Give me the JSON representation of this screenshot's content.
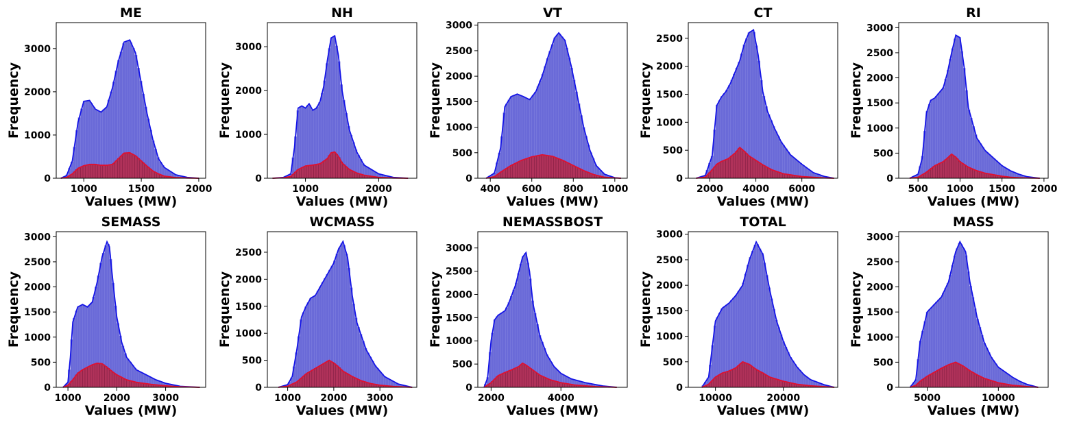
{
  "colors": {
    "total": "#3333cc",
    "total_fill": "#6a6ad8",
    "total_line": "#1414e6",
    "sub": "#c0143c",
    "sub_fill": "#b0325a",
    "sub_line": "#e01030"
  },
  "chart_data": [
    {
      "type": "histogram",
      "title": "ME",
      "xlabel": "Values (MW)",
      "ylabel": "Frequency",
      "xlim": [
        760,
        2060
      ],
      "ylim": [
        0,
        3600
      ],
      "xticks": [
        1000,
        1500,
        2000
      ],
      "yticks": [
        0,
        1000,
        2000,
        3000
      ],
      "series": [
        {
          "x": [
            800,
            850,
            900,
            950,
            1000,
            1050,
            1100,
            1150,
            1200,
            1250,
            1300,
            1350,
            1400,
            1450,
            1500,
            1550,
            1600,
            1650,
            1700,
            1800,
            1900,
            2000
          ],
          "y": [
            0,
            60,
            400,
            1300,
            1780,
            1800,
            1600,
            1530,
            1650,
            2100,
            2700,
            3150,
            3200,
            2900,
            2200,
            1500,
            900,
            450,
            250,
            80,
            20,
            0
          ]
        },
        {
          "x": [
            800,
            850,
            900,
            950,
            1000,
            1050,
            1100,
            1150,
            1200,
            1250,
            1300,
            1350,
            1400,
            1450,
            1500,
            1550,
            1600,
            1650,
            1700,
            1800,
            1900,
            2000
          ],
          "y": [
            0,
            20,
            100,
            230,
            290,
            320,
            320,
            300,
            300,
            320,
            450,
            580,
            590,
            520,
            400,
            280,
            170,
            100,
            50,
            15,
            5,
            0
          ]
        }
      ]
    },
    {
      "type": "histogram",
      "title": "NH",
      "xlabel": "Values (MW)",
      "ylabel": "Frequency",
      "xlim": [
        480,
        2520
      ],
      "ylim": [
        0,
        3550
      ],
      "xticks": [
        1000,
        2000
      ],
      "yticks": [
        0,
        1000,
        2000,
        3000
      ],
      "series": [
        {
          "x": [
            550,
            700,
            800,
            850,
            900,
            950,
            1000,
            1050,
            1100,
            1150,
            1200,
            1250,
            1300,
            1350,
            1400,
            1450,
            1500,
            1600,
            1700,
            1800,
            2000,
            2200,
            2400
          ],
          "y": [
            0,
            20,
            100,
            700,
            1600,
            1650,
            1600,
            1700,
            1550,
            1600,
            1750,
            2100,
            2700,
            3200,
            3250,
            2800,
            2000,
            1100,
            600,
            300,
            100,
            20,
            0
          ]
        },
        {
          "x": [
            550,
            700,
            800,
            900,
            1000,
            1100,
            1200,
            1300,
            1350,
            1400,
            1450,
            1500,
            1600,
            1700,
            1800,
            2000,
            2200,
            2400
          ],
          "y": [
            0,
            10,
            40,
            200,
            280,
            300,
            330,
            450,
            580,
            600,
            500,
            350,
            200,
            120,
            70,
            20,
            5,
            0
          ]
        }
      ]
    },
    {
      "type": "histogram",
      "title": "VT",
      "xlabel": "Values (MW)",
      "ylabel": "Frequency",
      "xlim": [
        340,
        1060
      ],
      "ylim": [
        0,
        3050
      ],
      "xticks": [
        400,
        600,
        800,
        1000
      ],
      "yticks": [
        0,
        500,
        1000,
        1500,
        2000,
        2500,
        3000
      ],
      "series": [
        {
          "x": [
            380,
            420,
            450,
            470,
            500,
            530,
            560,
            590,
            620,
            650,
            680,
            710,
            730,
            760,
            790,
            820,
            850,
            880,
            910,
            950,
            1000,
            1030
          ],
          "y": [
            0,
            100,
            600,
            1400,
            1600,
            1650,
            1600,
            1540,
            1700,
            2000,
            2400,
            2750,
            2850,
            2700,
            2200,
            1600,
            1000,
            550,
            250,
            80,
            10,
            0
          ]
        },
        {
          "x": [
            380,
            420,
            450,
            500,
            550,
            600,
            650,
            700,
            750,
            800,
            850,
            900,
            950,
            1000,
            1030
          ],
          "y": [
            0,
            30,
            120,
            250,
            350,
            420,
            460,
            430,
            350,
            250,
            150,
            70,
            20,
            5,
            0
          ]
        }
      ]
    },
    {
      "type": "histogram",
      "title": "CT",
      "xlabel": "Values (MW)",
      "ylabel": "Frequency",
      "xlim": [
        1060,
        7560
      ],
      "ylim": [
        0,
        2780
      ],
      "xticks": [
        2000,
        4000,
        6000
      ],
      "yticks": [
        0,
        500,
        1000,
        1500,
        2000,
        2500
      ],
      "series": [
        {
          "x": [
            1400,
            1800,
            2100,
            2300,
            2500,
            2700,
            2900,
            3100,
            3300,
            3500,
            3700,
            3900,
            4100,
            4300,
            4500,
            4800,
            5100,
            5500,
            6000,
            6500,
            7000,
            7400
          ],
          "y": [
            0,
            50,
            400,
            1300,
            1450,
            1550,
            1700,
            1900,
            2100,
            2400,
            2600,
            2650,
            2200,
            1550,
            1200,
            900,
            650,
            420,
            250,
            100,
            30,
            0
          ]
        },
        {
          "x": [
            1400,
            1800,
            2100,
            2300,
            2500,
            2800,
            3100,
            3300,
            3500,
            3700,
            4000,
            4300,
            4700,
            5200,
            6000,
            7000,
            7400
          ],
          "y": [
            0,
            20,
            150,
            250,
            300,
            350,
            450,
            550,
            480,
            400,
            320,
            240,
            150,
            80,
            30,
            5,
            0
          ]
        }
      ]
    },
    {
      "type": "histogram",
      "title": "RI",
      "xlabel": "Values (MW)",
      "ylabel": "Frequency",
      "xlim": [
        270,
        2050
      ],
      "ylim": [
        0,
        3100
      ],
      "xticks": [
        500,
        1000,
        1500,
        2000
      ],
      "yticks": [
        0,
        500,
        1000,
        1500,
        2000,
        2500,
        3000
      ],
      "series": [
        {
          "x": [
            400,
            500,
            550,
            600,
            650,
            700,
            750,
            800,
            850,
            900,
            950,
            1000,
            1050,
            1100,
            1200,
            1300,
            1400,
            1500,
            1600,
            1700,
            1800,
            1950
          ],
          "y": [
            0,
            80,
            400,
            1300,
            1550,
            1600,
            1700,
            1800,
            2100,
            2500,
            2850,
            2800,
            2200,
            1400,
            800,
            550,
            400,
            250,
            150,
            80,
            30,
            0
          ]
        },
        {
          "x": [
            400,
            500,
            600,
            700,
            800,
            850,
            900,
            950,
            1000,
            1100,
            1200,
            1300,
            1400,
            1500,
            1600,
            1700,
            1800,
            1950
          ],
          "y": [
            0,
            20,
            120,
            250,
            330,
            400,
            480,
            420,
            330,
            220,
            150,
            100,
            70,
            40,
            20,
            10,
            5,
            0
          ]
        }
      ]
    },
    {
      "type": "histogram",
      "title": "SEMASS",
      "xlabel": "Values (MW)",
      "ylabel": "Frequency",
      "xlim": [
        760,
        3820
      ],
      "ylim": [
        0,
        3100
      ],
      "xticks": [
        1000,
        2000,
        3000
      ],
      "yticks": [
        0,
        500,
        1000,
        1500,
        2000,
        2500,
        3000
      ],
      "series": [
        {
          "x": [
            900,
            1000,
            1050,
            1100,
            1200,
            1300,
            1400,
            1500,
            1600,
            1700,
            1800,
            1850,
            1900,
            2000,
            2100,
            2200,
            2400,
            2600,
            2800,
            3000,
            3300,
            3700
          ],
          "y": [
            0,
            100,
            600,
            1300,
            1600,
            1650,
            1600,
            1700,
            2100,
            2600,
            2900,
            2800,
            2300,
            1400,
            900,
            600,
            350,
            250,
            150,
            80,
            20,
            0
          ]
        },
        {
          "x": [
            900,
            1000,
            1100,
            1200,
            1300,
            1400,
            1500,
            1600,
            1700,
            1800,
            1900,
            2000,
            2200,
            2400,
            2700,
            3000,
            3300,
            3700
          ],
          "y": [
            0,
            40,
            150,
            280,
            350,
            400,
            450,
            480,
            470,
            400,
            320,
            250,
            150,
            100,
            60,
            30,
            10,
            0
          ]
        }
      ]
    },
    {
      "type": "histogram",
      "title": "WCMASS",
      "xlabel": "Values (MW)",
      "ylabel": "Frequency",
      "xlim": [
        560,
        3800
      ],
      "ylim": [
        0,
        2880
      ],
      "xticks": [
        1000,
        2000,
        3000
      ],
      "yticks": [
        0,
        500,
        1000,
        1500,
        2000,
        2500
      ],
      "series": [
        {
          "x": [
            800,
            1000,
            1100,
            1200,
            1300,
            1400,
            1500,
            1600,
            1700,
            1800,
            1900,
            2000,
            2100,
            2200,
            2300,
            2400,
            2500,
            2700,
            2900,
            3100,
            3400,
            3700
          ],
          "y": [
            0,
            50,
            200,
            700,
            1300,
            1500,
            1650,
            1700,
            1850,
            2000,
            2150,
            2300,
            2550,
            2700,
            2400,
            1700,
            1200,
            700,
            400,
            200,
            60,
            0
          ]
        },
        {
          "x": [
            800,
            1000,
            1200,
            1400,
            1600,
            1700,
            1800,
            1900,
            2000,
            2100,
            2200,
            2400,
            2600,
            2800,
            3000,
            3300,
            3700
          ],
          "y": [
            0,
            20,
            100,
            250,
            350,
            400,
            450,
            500,
            450,
            380,
            300,
            200,
            120,
            70,
            40,
            15,
            0
          ]
        }
      ]
    },
    {
      "type": "histogram",
      "title": "NEMASSBOST",
      "xlabel": "Values (MW)",
      "ylabel": "Frequency",
      "xlim": [
        1620,
        5900
      ],
      "ylim": [
        0,
        3350
      ],
      "xticks": [
        2000,
        4000
      ],
      "yticks": [
        0,
        500,
        1000,
        1500,
        2000,
        2500,
        3000
      ],
      "series": [
        {
          "x": [
            1800,
            1900,
            2000,
            2100,
            2200,
            2300,
            2400,
            2500,
            2600,
            2700,
            2800,
            2900,
            3000,
            3100,
            3200,
            3400,
            3600,
            3800,
            4000,
            4300,
            4700,
            5200,
            5600
          ],
          "y": [
            0,
            200,
            1000,
            1450,
            1550,
            1600,
            1650,
            1800,
            2000,
            2200,
            2500,
            2800,
            2900,
            2500,
            1800,
            1100,
            700,
            450,
            300,
            180,
            100,
            30,
            0
          ]
        },
        {
          "x": [
            1800,
            2000,
            2200,
            2400,
            2600,
            2800,
            2900,
            3000,
            3200,
            3400,
            3700,
            4000,
            4400,
            5000,
            5600
          ],
          "y": [
            0,
            100,
            250,
            320,
            380,
            450,
            520,
            480,
            370,
            260,
            160,
            100,
            50,
            15,
            0
          ]
        }
      ]
    },
    {
      "type": "histogram",
      "title": "TOTAL",
      "xlabel": "Values (MW)",
      "ylabel": "Frequency",
      "xlim": [
        6000,
        28000
      ],
      "ylim": [
        0,
        3050
      ],
      "xticks": [
        10000,
        20000
      ],
      "yticks": [
        0,
        500,
        1000,
        1500,
        2000,
        2500,
        3000
      ],
      "series": [
        {
          "x": [
            8000,
            9000,
            10000,
            11000,
            12000,
            13000,
            14000,
            15000,
            16000,
            17000,
            18000,
            19000,
            20000,
            21000,
            22000,
            23000,
            24000,
            26000,
            27500
          ],
          "y": [
            0,
            200,
            1300,
            1550,
            1650,
            1800,
            2000,
            2500,
            2850,
            2600,
            1900,
            1300,
            900,
            600,
            400,
            250,
            150,
            50,
            0
          ]
        },
        {
          "x": [
            8000,
            9000,
            10000,
            11000,
            12000,
            13000,
            14000,
            15000,
            16000,
            17000,
            18000,
            20000,
            22000,
            24000,
            27500
          ],
          "y": [
            0,
            60,
            200,
            280,
            320,
            380,
            500,
            450,
            350,
            280,
            200,
            120,
            60,
            30,
            0
          ]
        }
      ]
    },
    {
      "type": "histogram",
      "title": "MASS",
      "xlabel": "Values (MW)",
      "ylabel": "Frequency",
      "xlim": [
        3000,
        13500
      ],
      "ylim": [
        0,
        3100
      ],
      "xticks": [
        5000,
        10000
      ],
      "yticks": [
        0,
        500,
        1000,
        1500,
        2000,
        2500,
        3000
      ],
      "series": [
        {
          "x": [
            3800,
            4200,
            4500,
            5000,
            5500,
            6000,
            6500,
            7000,
            7300,
            7700,
            8000,
            8500,
            9000,
            9500,
            10000,
            10500,
            11000,
            11500,
            12000,
            12800
          ],
          "y": [
            0,
            150,
            900,
            1500,
            1650,
            1800,
            2100,
            2700,
            2900,
            2700,
            2100,
            1400,
            900,
            600,
            400,
            300,
            200,
            120,
            60,
            0
          ]
        },
        {
          "x": [
            3800,
            4200,
            4500,
            5000,
            5500,
            6000,
            6500,
            7000,
            7500,
            8000,
            8500,
            9000,
            10000,
            11000,
            12000,
            12800
          ],
          "y": [
            0,
            40,
            120,
            220,
            300,
            380,
            450,
            500,
            430,
            330,
            250,
            180,
            90,
            40,
            15,
            0
          ]
        }
      ]
    }
  ]
}
